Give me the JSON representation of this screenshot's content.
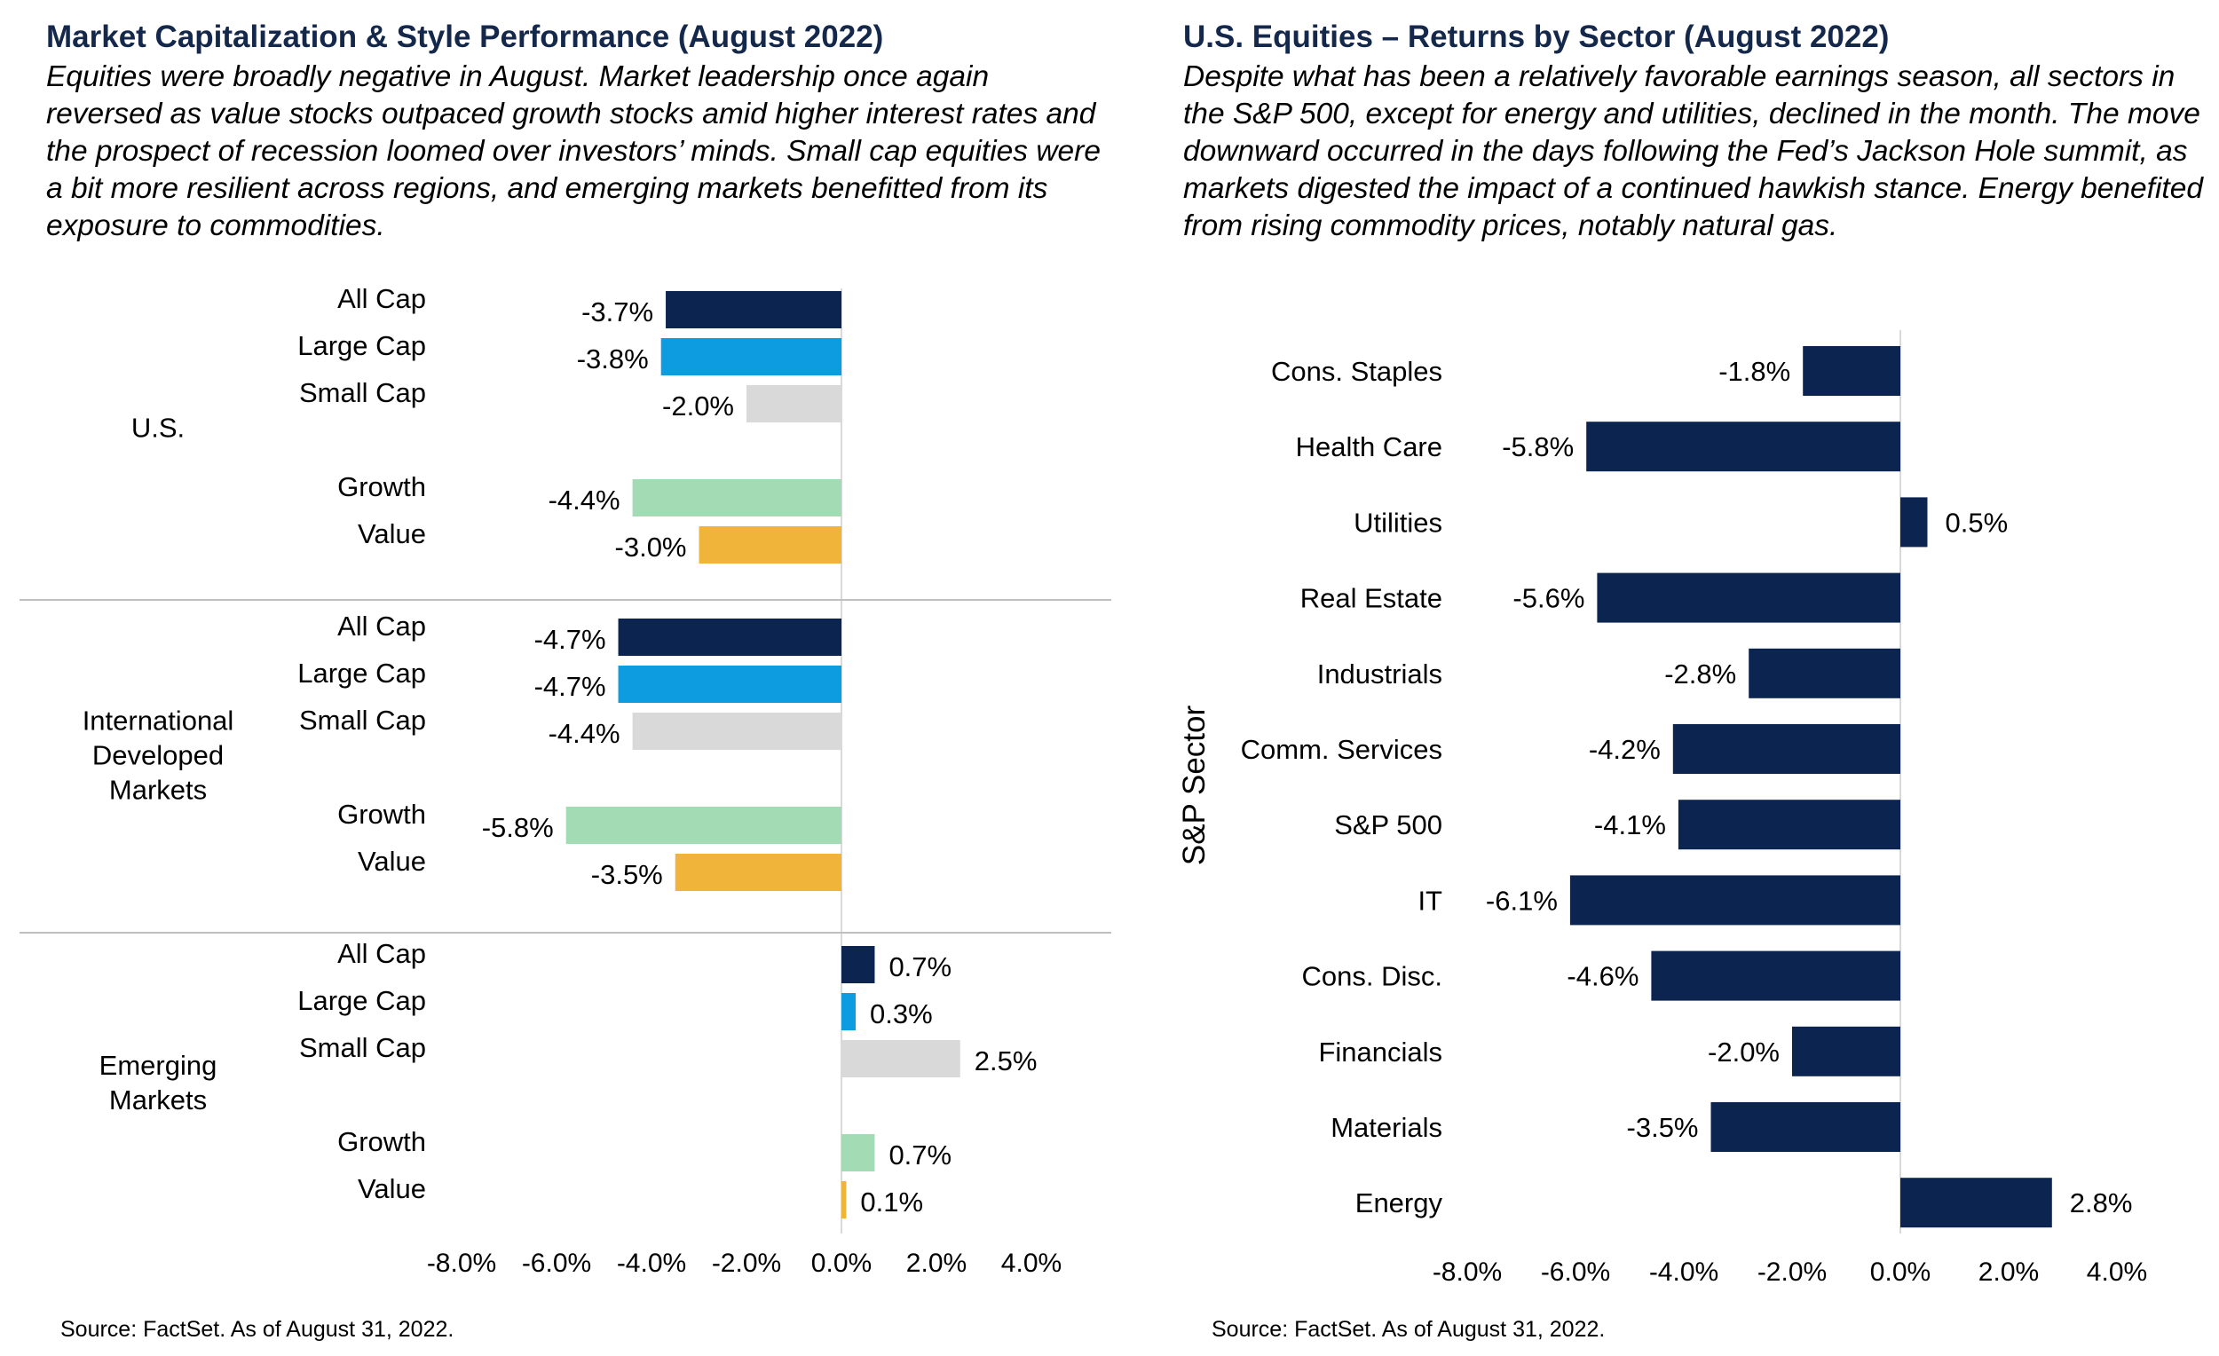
{
  "left": {
    "title": "Market Capitalization  & Style  Performance (August  2022)",
    "description": "Equities were broadly negative in August. Market leadership once again reversed as value stocks outpaced growth stocks amid higher interest rates and the prospect of recession loomed over investors’ minds. Small cap equities were a bit more resilient across regions, and emerging markets benefitted from its exposure to commodities.",
    "source": "Source: FactSet. As of August 31, 2022."
  },
  "right": {
    "title": "U.S. Equities – Returns by Sector (August  2022)",
    "description": "Despite what has been a relatively favorable earnings season, all sectors in the S&P 500, except for energy and utilities, declined in the month. The move downward occurred in the days following the Fed’s Jackson Hole summit, as markets digested the impact of a continued hawkish stance. Energy benefited from rising commodity prices, notably natural gas.",
    "source": "Source: FactSet. As of August 31, 2022."
  },
  "colors": {
    "title": "#14284b",
    "all_cap": "#0b2550",
    "large_cap": "#0e9ce0",
    "small_cap": "#d9d9d9",
    "growth": "#a2dbb4",
    "value": "#f0b43a",
    "sector_bar": "#0b2550",
    "divider": "#bfbfbf",
    "axis": "#d9d9d9"
  },
  "chart_data": [
    {
      "type": "bar",
      "orientation": "horizontal",
      "title": "Market Capitalization  & Style  Performance (August  2022)",
      "groups": [
        {
          "name": "U.S.",
          "categories": [
            "All Cap",
            "Large Cap",
            "Small Cap",
            "Growth",
            "Value"
          ],
          "values": [
            -3.7,
            -3.8,
            -2.0,
            -4.4,
            -3.0
          ],
          "labels": [
            "-3.7%",
            "-3.8%",
            "-2.0%",
            "-4.4%",
            "-3.0%"
          ]
        },
        {
          "name": "International Developed Markets",
          "name_lines": [
            "International",
            "Developed",
            "Markets"
          ],
          "categories": [
            "All Cap",
            "Large Cap",
            "Small Cap",
            "Growth",
            "Value"
          ],
          "values": [
            -4.7,
            -4.7,
            -4.4,
            -5.8,
            -3.5
          ],
          "labels": [
            "-4.7%",
            "-4.7%",
            "-4.4%",
            "-5.8%",
            "-3.5%"
          ]
        },
        {
          "name": "Emerging Markets",
          "name_lines": [
            "Emerging",
            "Markets"
          ],
          "categories": [
            "All Cap",
            "Large Cap",
            "Small Cap",
            "Growth",
            "Value"
          ],
          "values": [
            0.7,
            0.3,
            2.5,
            0.7,
            0.1
          ],
          "labels": [
            "0.7%",
            "0.3%",
            "2.5%",
            "0.7%",
            "0.1%"
          ]
        }
      ],
      "series_colors": [
        "all_cap",
        "large_cap",
        "small_cap",
        "growth",
        "value"
      ],
      "xlim": [
        -8.0,
        4.0
      ],
      "xticks": [
        -8.0,
        -6.0,
        -4.0,
        -2.0,
        0.0,
        2.0,
        4.0
      ],
      "xtick_labels": [
        "-8.0%",
        "-6.0%",
        "-4.0%",
        "-2.0%",
        "0.0%",
        "2.0%",
        "4.0%"
      ],
      "grid": false,
      "legend": "none"
    },
    {
      "type": "bar",
      "orientation": "horizontal",
      "title": "U.S. Equities – Returns by Sector (August  2022)",
      "ylabel": "S&P Sector",
      "categories": [
        "Cons. Staples",
        "Health Care",
        "Utilities",
        "Real Estate",
        "Industrials",
        "Comm. Services",
        "S&P 500",
        "IT",
        "Cons. Disc.",
        "Financials",
        "Materials",
        "Energy"
      ],
      "values": [
        -1.8,
        -5.8,
        0.5,
        -5.6,
        -2.8,
        -4.2,
        -4.1,
        -6.1,
        -4.6,
        -2.0,
        -3.5,
        2.8
      ],
      "labels": [
        "-1.8%",
        "-5.8%",
        "0.5%",
        "-5.6%",
        "-2.8%",
        "-4.2%",
        "-4.1%",
        "-6.1%",
        "-4.6%",
        "-2.0%",
        "-3.5%",
        "2.8%"
      ],
      "xlim": [
        -8.0,
        4.0
      ],
      "xticks": [
        -8.0,
        -6.0,
        -4.0,
        -2.0,
        0.0,
        2.0,
        4.0
      ],
      "xtick_labels": [
        "-8.0%",
        "-6.0%",
        "-4.0%",
        "-2.0%",
        "0.0%",
        "2.0%",
        "4.0%"
      ],
      "grid": false,
      "legend": "none"
    }
  ]
}
